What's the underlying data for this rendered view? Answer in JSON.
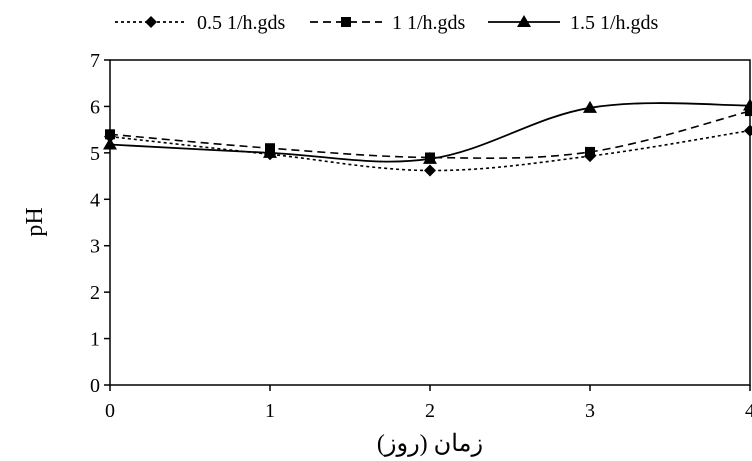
{
  "chart_data": {
    "type": "line",
    "title": "",
    "xlabel": "زمان (روز)",
    "ylabel": "pH",
    "x": [
      0,
      1,
      2,
      3,
      4
    ],
    "x_tick_labels": [
      "0",
      "1",
      "2",
      "3",
      "4"
    ],
    "y_tick_labels": [
      "0",
      "1",
      "2",
      "3",
      "4",
      "5",
      "6",
      "7"
    ],
    "xlim": [
      0,
      4
    ],
    "ylim": [
      0,
      7
    ],
    "grid": false,
    "legend_position": "top",
    "series": [
      {
        "name": "0.5  1/h.gds",
        "values": [
          5.35,
          4.97,
          4.62,
          4.93,
          5.48
        ],
        "marker": "diamond",
        "line_style": "dotted",
        "color": "#000000"
      },
      {
        "name": "1 1/h.gds",
        "values": [
          5.4,
          5.1,
          4.9,
          5.02,
          5.9
        ],
        "marker": "square",
        "line_style": "dashed",
        "color": "#000000"
      },
      {
        "name": "1.5  1/h.gds",
        "values": [
          5.18,
          5.0,
          4.87,
          5.97,
          6.02
        ],
        "marker": "triangle",
        "line_style": "solid",
        "color": "#000000"
      }
    ]
  }
}
